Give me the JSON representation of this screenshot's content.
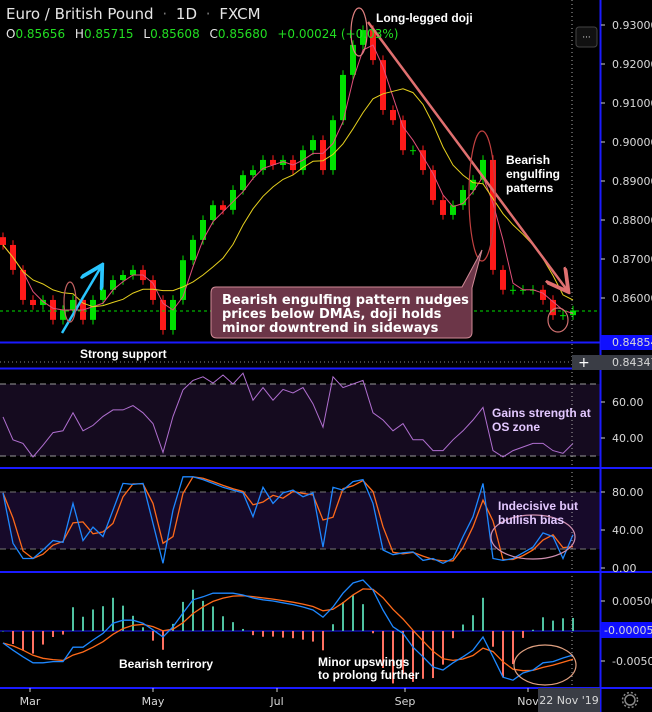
{
  "header": {
    "symbol": "Euro / British Pound",
    "interval": "1D",
    "exchange": "FXCM",
    "separator": "·",
    "ohlc": {
      "o_label": "O",
      "o": "0.85656",
      "h_label": "H",
      "h": "0.85715",
      "l_label": "L",
      "l": "0.85608",
      "c_label": "C",
      "c": "0.85680",
      "change": "+0.00024 (+0.03%)"
    }
  },
  "toolbar": {
    "more_label": "···"
  },
  "colors": {
    "up": "#00e000",
    "down": "#ff1a1a",
    "ma_short": "#e0507a",
    "ma_long": "#e6d01e",
    "rsi": "#b06fd0",
    "stoch_k": "#1e88ff",
    "stoch_d": "#ff6a1a",
    "macd": "#1e88ff",
    "signal": "#ff6a1a",
    "hist_up": "#4fc3a1",
    "hist_down": "#ff7060",
    "axis_line": "#1a1aff",
    "accent_badge": "#1010ff"
  },
  "annotations": {
    "doji": "Long-legged doji",
    "engulfing": [
      "Bearish",
      "engulfing",
      "patterns"
    ],
    "support": "Strong support",
    "callout": [
      "Bearish engulfing pattern nudges",
      "prices below DMAs, doji holds",
      "minor downtrend in sideways"
    ],
    "rsi": [
      "Gains strength at",
      "OS zone"
    ],
    "stoch": [
      "Indecisive but",
      "bullish bias"
    ],
    "macd_left": "Bearish terrirory",
    "macd_right": [
      "Minor upswings",
      "to prolong further"
    ]
  },
  "price_axis": {
    "ticks": [
      "0.93000",
      "0.92000",
      "0.91000",
      "0.90000",
      "0.89000",
      "0.88000",
      "0.87000",
      "0.86000"
    ],
    "support_badge": "0.84854",
    "cursor_badge": "0.84347"
  },
  "rsi_axis": {
    "ticks": [
      "60.00",
      "40.00"
    ]
  },
  "stoch_axis": {
    "ticks": [
      "80.00",
      "40.00",
      "0.00"
    ]
  },
  "macd_axis": {
    "ticks": [
      "0.00500",
      "-0.00500"
    ],
    "current_badge": "-0.00005"
  },
  "time_axis": {
    "ticks": [
      "Mar",
      "May",
      "Jul",
      "Sep",
      "Nov"
    ],
    "current_badge": "22 Nov '19"
  },
  "chart_data": [
    {
      "type": "candlestick",
      "title": "Euro / British Pound · 1D · FXCM",
      "ylim": [
        0.8435,
        0.935
      ],
      "support_level": 0.84854,
      "last_price": 0.8568,
      "close": [
        0.8736,
        0.8672,
        0.8595,
        0.8582,
        0.8595,
        0.8544,
        0.8569,
        0.8595,
        0.8544,
        0.8595,
        0.8621,
        0.8646,
        0.8659,
        0.8672,
        0.8646,
        0.8595,
        0.8518,
        0.8595,
        0.8697,
        0.8749,
        0.88,
        0.8838,
        0.8826,
        0.8877,
        0.8915,
        0.8928,
        0.8954,
        0.8941,
        0.8954,
        0.8928,
        0.8979,
        0.9005,
        0.8928,
        0.9056,
        0.9172,
        0.9249,
        0.9287,
        0.921,
        0.9082,
        0.9056,
        0.8979,
        0.8979,
        0.8928,
        0.8851,
        0.8813,
        0.8838,
        0.8877,
        0.8903,
        0.8954,
        0.8672,
        0.8621,
        0.8621,
        0.8621,
        0.8621,
        0.8595,
        0.8556,
        0.8556,
        0.8568
      ]
    },
    {
      "type": "line",
      "name": "RSI",
      "ylim": [
        20,
        80
      ],
      "levels": [
        70,
        30
      ],
      "values": [
        51.7,
        39,
        37,
        29.5,
        36,
        43,
        44,
        54,
        44,
        47,
        52,
        55.6,
        55.6,
        58,
        54,
        48,
        32,
        52,
        66.7,
        72,
        74,
        70.5,
        75,
        70,
        76,
        61,
        68,
        61,
        67,
        65,
        68,
        59,
        46,
        74,
        68,
        70,
        72,
        54,
        50,
        44,
        48,
        39,
        39,
        33,
        33,
        39,
        44,
        50,
        57,
        33,
        29.5,
        33,
        35,
        37,
        37,
        33,
        31.5,
        37
      ]
    },
    {
      "type": "line",
      "name": "Stochastic %K",
      "ylim": [
        0,
        100
      ],
      "levels": [
        80,
        20
      ],
      "values": [
        79,
        26,
        10,
        10,
        19,
        29,
        27,
        68,
        29,
        43,
        33,
        61,
        89,
        88,
        89,
        47,
        5,
        61,
        96,
        96,
        93,
        89,
        85,
        82,
        79,
        54,
        85,
        68,
        79,
        82,
        75,
        79,
        22,
        85,
        82,
        91,
        93,
        68,
        19,
        14,
        16,
        17,
        8,
        10,
        5,
        10,
        33,
        54,
        89,
        10,
        8,
        10,
        16,
        22,
        37,
        33,
        10,
        35
      ]
    },
    {
      "type": "line",
      "name": "MACD",
      "ylim": [
        -0.009,
        0.01
      ],
      "values": [
        -0.002,
        -0.0032,
        -0.0043,
        -0.0053,
        -0.0053,
        -0.0051,
        -0.0051,
        -0.0027,
        -0.0027,
        -0.0015,
        -0.0004,
        0.0013,
        0.0018,
        0.0018,
        0.0013,
        0.0002,
        -0.001,
        0.0007,
        0.003,
        0.0052,
        0.0057,
        0.0063,
        0.0063,
        0.0063,
        0.006,
        0.0055,
        0.0052,
        0.005,
        0.0047,
        0.0044,
        0.004,
        0.0035,
        0.0023,
        0.004,
        0.0063,
        0.008,
        0.0085,
        0.0068,
        0.0035,
        0.0007,
        -0.0004,
        -0.0027,
        -0.0043,
        -0.006,
        -0.0065,
        -0.0053,
        -0.0043,
        -0.0032,
        -0.001,
        -0.0043,
        -0.0077,
        -0.0082,
        -0.007,
        -0.0065,
        -0.0053,
        -0.0051,
        -0.0045,
        -0.004
      ]
    }
  ]
}
